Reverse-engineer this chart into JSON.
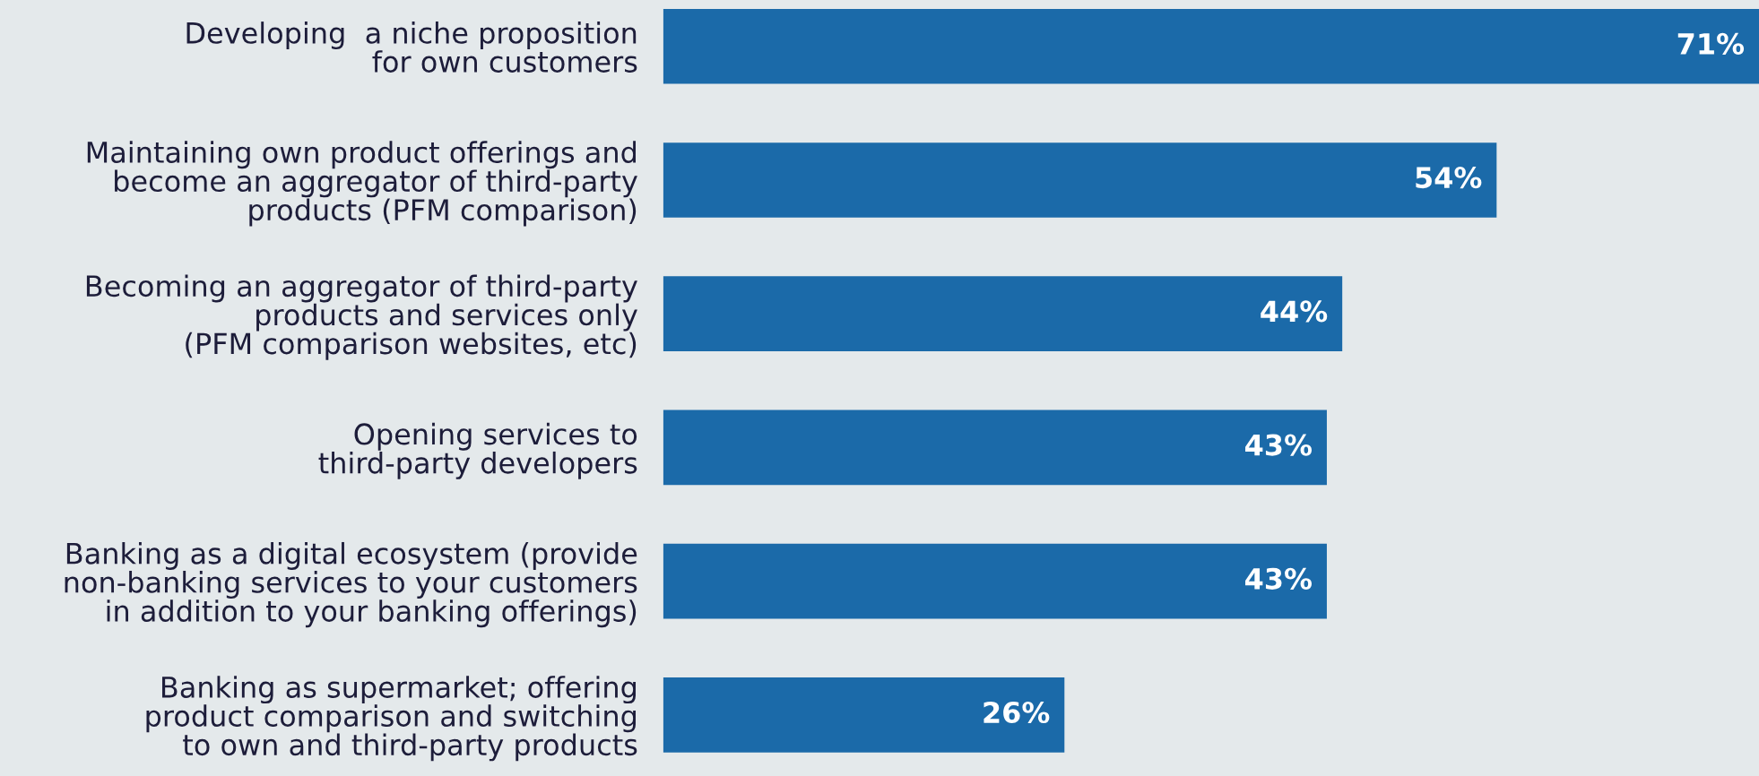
{
  "chart_data": {
    "type": "bar",
    "orientation": "horizontal",
    "categories": [
      "Developing  a niche proposition\nfor own customers",
      "Maintaining own product offerings and\nbecome an aggregator of third-party\nproducts (PFM comparison)",
      "Becoming an aggregator of third-party\nproducts and services only\n(PFM comparison websites, etc)",
      "Opening services to\nthird-party developers",
      "Banking as a digital ecosystem (provide\nnon-banking services to your customers\nin addition to your banking offerings)",
      "Banking as supermarket; offering\nproduct comparison and switching\nto own and third-party products"
    ],
    "values": [
      71,
      54,
      44,
      43,
      43,
      26
    ],
    "value_labels": [
      "71%",
      "54%",
      "44%",
      "43%",
      "43%",
      "26%"
    ],
    "color": "#1b6aa9",
    "grid": false,
    "legend": false
  }
}
